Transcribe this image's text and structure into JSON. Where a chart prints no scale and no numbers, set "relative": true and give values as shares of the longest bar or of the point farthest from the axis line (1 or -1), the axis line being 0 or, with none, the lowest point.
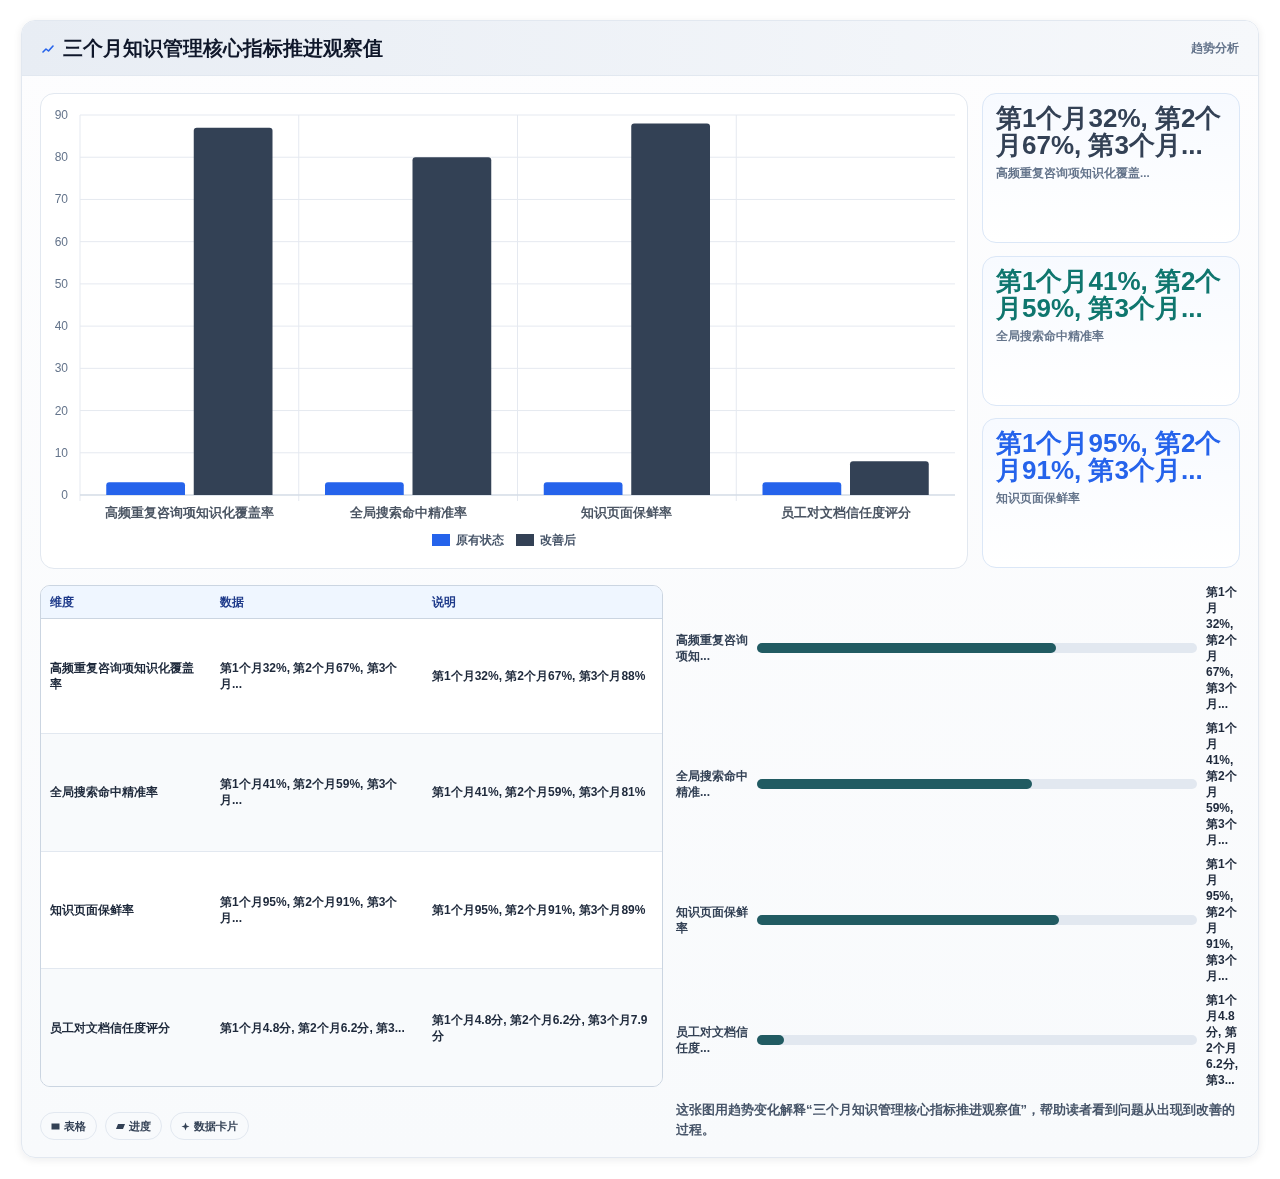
{
  "chart_data": [
    {
      "type": "bar",
      "title": "三个月知识管理核心指标推进观察值",
      "categories": [
        "高频重复咨询项知识化覆盖率",
        "全局搜索命中精准率",
        "知识页面保鲜率",
        "员工对文档信任度评分"
      ],
      "series": [
        {
          "name": "原有状态",
          "color": "#2563eb",
          "values": [
            3,
            3,
            3,
            3
          ]
        },
        {
          "name": "改善后",
          "color": "#334155",
          "values": [
            87,
            80,
            88,
            8
          ]
        }
      ],
      "ylim": [
        0,
        90
      ],
      "yticks": [
        0,
        10,
        20,
        30,
        40,
        50,
        60,
        70,
        80,
        90
      ],
      "grid": true,
      "legend": "bottom"
    },
    {
      "type": "other",
      "subtitle": "趋势分析",
      "categories": [
        "高频重复咨询项知识化覆盖...",
        "全局搜索命中精准率",
        "知识页面保鲜率"
      ],
      "value_labels": [
        "第1个月32%, 第2个月67%, 第3个月...",
        "第1个月41%, 第2个月59%, 第3个月...",
        "第1个月95%, 第2个月91%, 第3个月..."
      ]
    },
    {
      "type": "other",
      "ylabel": "维度",
      "categories": [
        "数据",
        "说明"
      ],
      "y_categories": [
        "高频重复咨询项知识化覆盖率",
        "全局搜索命中精准率",
        "知识页面保鲜率",
        "员工对文档信任度评分"
      ],
      "cell_labels": [
        [
          "第1个月32%, 第2个月67%, 第3个月...",
          "第1个月32%, 第2个月67%, 第3个月88%"
        ],
        [
          "第1个月41%, 第2个月59%, 第3个月...",
          "第1个月41%, 第2个月59%, 第3个月81%"
        ],
        [
          "第1个月95%, 第2个月91%, 第3个月...",
          "第1个月95%, 第2个月91%, 第3个月89%"
        ],
        [
          "第1个月4.8分, 第2个月6.2分, 第3...",
          "第1个月4.8分, 第2个月6.2分, 第3个月7.9分"
        ]
      ],
      "annotations": [
        "表格",
        "进度",
        "数据卡片"
      ]
    },
    {
      "type": "bar",
      "orientation": "horizontal",
      "relative": true,
      "categories": [
        "高频重复咨询项知...",
        "全局搜索命中精准...",
        "知识页面保鲜率",
        "员工对文档信任度..."
      ],
      "values": [
        0.99,
        0.91,
        1,
        0.09
      ],
      "color": "#215b62",
      "annotations": [
        "第1个月32%, 第2个月67%, 第3个月...",
        "第1个月41%, 第2个月59%, 第3个月...",
        "第1个月95%, 第2个月91%, 第3个月...",
        "第1个月4.8分, 第2个月6.2分, 第3...",
        "这张图用趋势变化解释“三个月知识管理核心指标推进观察值”，帮助读者看到问题从出现到改善的过程。"
      ]
    }
  ]
}
